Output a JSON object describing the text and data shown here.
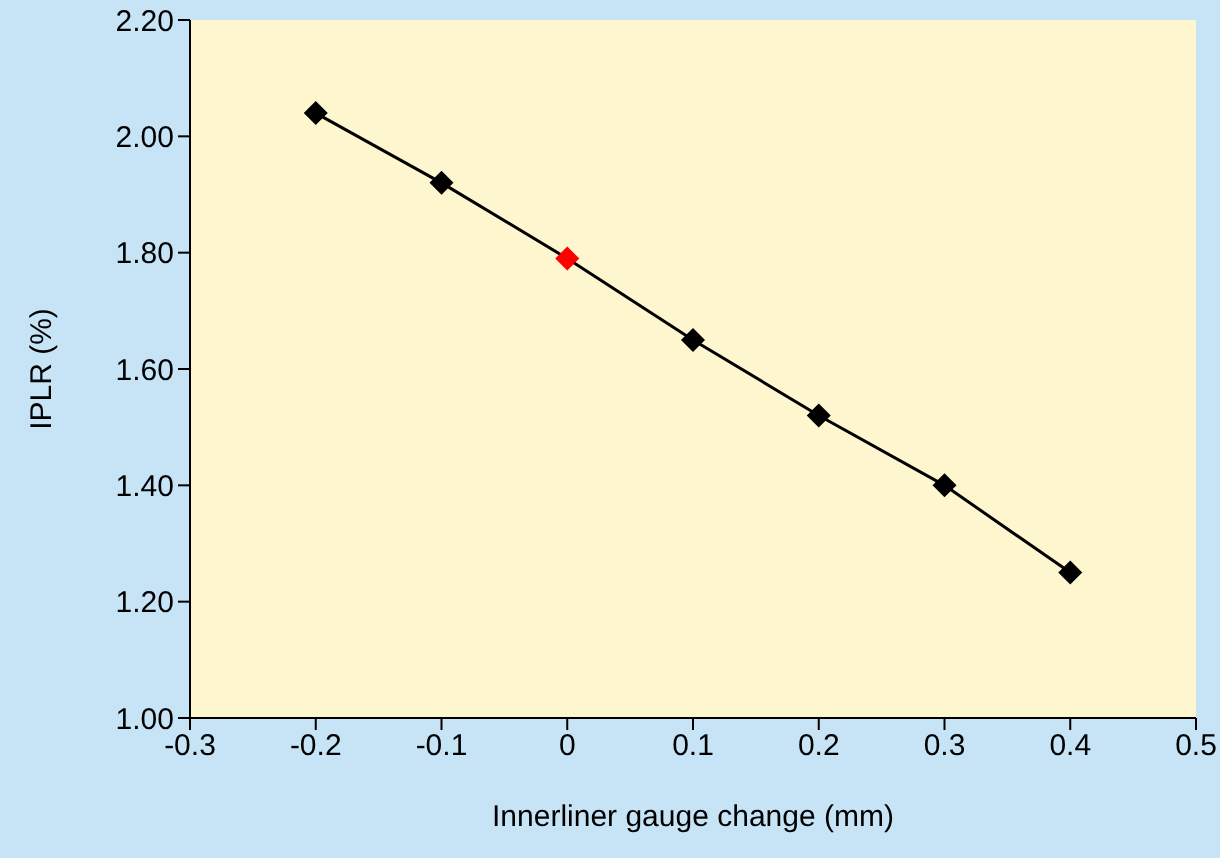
{
  "chart_data": {
    "type": "line",
    "xlabel": "Innerliner gauge change (mm)",
    "ylabel": "IPLR (%)",
    "x": [
      -0.2,
      -0.1,
      0,
      0.1,
      0.2,
      0.3,
      0.4
    ],
    "series": [
      {
        "color": "#000000",
        "values": [
          2.04,
          1.92,
          1.79,
          1.65,
          1.52,
          1.4,
          1.25
        ],
        "colors": [
          "#000000",
          "#000000",
          "#ff0000",
          "#000000",
          "#000000",
          "#000000",
          "#000000"
        ]
      }
    ],
    "xlim": [
      -0.3,
      0.5
    ],
    "xticks": [
      -0.3,
      -0.2,
      -0.1,
      0,
      0.1,
      0.2,
      0.3,
      0.4,
      0.5
    ],
    "ylim": [
      1,
      2.2
    ],
    "yticks": [
      {
        "value": 1,
        "label": "1.00"
      },
      {
        "value": 1.2,
        "label": "1.20"
      },
      {
        "value": 1.4,
        "label": "1.40"
      },
      {
        "value": 1.6,
        "label": "1.60"
      },
      {
        "value": 1.8,
        "label": "1.80"
      },
      {
        "value": 2,
        "label": "2.00"
      },
      {
        "value": 2.2,
        "label": "2.20"
      }
    ],
    "grid": false,
    "marker": "diamond",
    "line_style": "solid"
  }
}
